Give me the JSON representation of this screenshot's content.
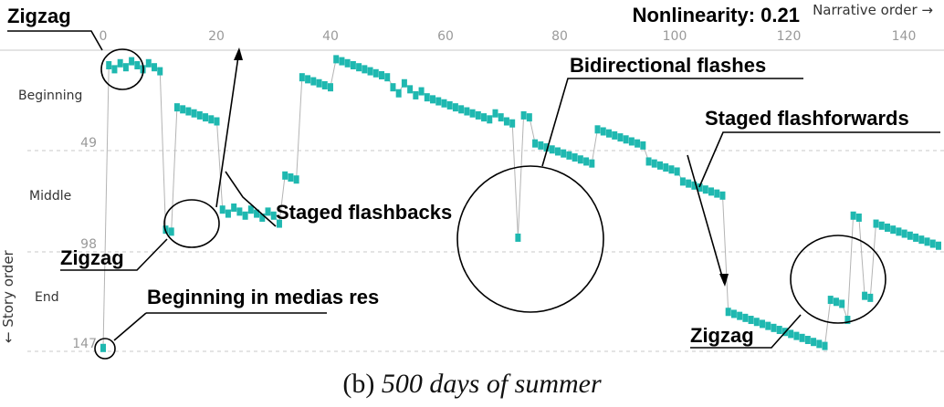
{
  "chart_data": {
    "type": "scatter",
    "title": "Nonlinearity: 0.21",
    "xlabel": "Narrative order →",
    "ylabel": "← Story order",
    "xlim": [
      0,
      147
    ],
    "ylim": [
      0,
      147
    ],
    "y_inverted": true,
    "x_ticks": [
      "0",
      "20",
      "40",
      "60",
      "80",
      "100",
      "120",
      "140"
    ],
    "y_ticks": [
      "49",
      "98",
      "147"
    ],
    "sections": [
      "Beginning",
      "Middle",
      "End"
    ],
    "grid": "horizontal dashed at section boundaries",
    "marker_color": "#1fb8b0",
    "connector_color": "#b4b4b4",
    "points": [
      [
        0,
        146
      ],
      [
        1,
        5
      ],
      [
        2,
        7
      ],
      [
        3,
        4
      ],
      [
        4,
        6
      ],
      [
        5,
        3
      ],
      [
        6,
        5
      ],
      [
        7,
        7
      ],
      [
        8,
        4
      ],
      [
        9,
        6
      ],
      [
        10,
        8
      ],
      [
        11,
        87
      ],
      [
        12,
        88
      ],
      [
        13,
        26
      ],
      [
        14,
        27
      ],
      [
        15,
        28
      ],
      [
        16,
        29
      ],
      [
        17,
        30
      ],
      [
        18,
        31
      ],
      [
        19,
        32
      ],
      [
        20,
        33
      ],
      [
        21,
        77
      ],
      [
        22,
        79
      ],
      [
        23,
        76
      ],
      [
        24,
        78
      ],
      [
        25,
        80
      ],
      [
        26,
        77
      ],
      [
        27,
        79
      ],
      [
        28,
        81
      ],
      [
        29,
        78
      ],
      [
        30,
        80
      ],
      [
        31,
        84
      ],
      [
        32,
        60
      ],
      [
        33,
        61
      ],
      [
        34,
        62
      ],
      [
        35,
        11
      ],
      [
        36,
        12
      ],
      [
        37,
        13
      ],
      [
        38,
        14
      ],
      [
        39,
        15
      ],
      [
        40,
        16
      ],
      [
        41,
        2
      ],
      [
        42,
        3
      ],
      [
        43,
        4
      ],
      [
        44,
        5
      ],
      [
        45,
        6
      ],
      [
        46,
        7
      ],
      [
        47,
        8
      ],
      [
        48,
        9
      ],
      [
        49,
        10
      ],
      [
        50,
        11
      ],
      [
        51,
        16
      ],
      [
        52,
        19
      ],
      [
        53,
        14
      ],
      [
        54,
        17
      ],
      [
        55,
        20
      ],
      [
        56,
        18
      ],
      [
        57,
        21
      ],
      [
        58,
        22
      ],
      [
        59,
        23
      ],
      [
        60,
        24
      ],
      [
        61,
        25
      ],
      [
        62,
        26
      ],
      [
        63,
        27
      ],
      [
        64,
        28
      ],
      [
        65,
        29
      ],
      [
        66,
        30
      ],
      [
        67,
        31
      ],
      [
        68,
        32
      ],
      [
        69,
        29
      ],
      [
        70,
        31
      ],
      [
        71,
        33
      ],
      [
        72,
        34
      ],
      [
        73,
        91
      ],
      [
        74,
        30
      ],
      [
        75,
        31
      ],
      [
        76,
        44
      ],
      [
        77,
        45
      ],
      [
        78,
        46
      ],
      [
        79,
        47
      ],
      [
        80,
        48
      ],
      [
        81,
        49
      ],
      [
        82,
        50
      ],
      [
        83,
        51
      ],
      [
        84,
        52
      ],
      [
        85,
        53
      ],
      [
        86,
        54
      ],
      [
        87,
        37
      ],
      [
        88,
        38
      ],
      [
        89,
        39
      ],
      [
        90,
        40
      ],
      [
        91,
        41
      ],
      [
        92,
        42
      ],
      [
        93,
        43
      ],
      [
        94,
        44
      ],
      [
        95,
        45
      ],
      [
        96,
        53
      ],
      [
        97,
        54
      ],
      [
        98,
        55
      ],
      [
        99,
        56
      ],
      [
        100,
        57
      ],
      [
        101,
        58
      ],
      [
        102,
        63
      ],
      [
        103,
        64
      ],
      [
        104,
        65
      ],
      [
        105,
        66
      ],
      [
        106,
        67
      ],
      [
        107,
        68
      ],
      [
        108,
        69
      ],
      [
        109,
        70
      ],
      [
        110,
        128
      ],
      [
        111,
        129
      ],
      [
        112,
        130
      ],
      [
        113,
        131
      ],
      [
        114,
        132
      ],
      [
        115,
        133
      ],
      [
        116,
        134
      ],
      [
        117,
        135
      ],
      [
        118,
        136
      ],
      [
        119,
        137
      ],
      [
        120,
        138
      ],
      [
        121,
        139
      ],
      [
        122,
        140
      ],
      [
        123,
        141
      ],
      [
        124,
        142
      ],
      [
        125,
        143
      ],
      [
        126,
        144
      ],
      [
        127,
        145
      ],
      [
        128,
        122
      ],
      [
        129,
        123
      ],
      [
        130,
        124
      ],
      [
        131,
        132
      ],
      [
        132,
        80
      ],
      [
        133,
        81
      ],
      [
        134,
        120
      ],
      [
        135,
        121
      ],
      [
        136,
        84
      ],
      [
        137,
        85
      ],
      [
        138,
        86
      ],
      [
        139,
        87
      ],
      [
        140,
        88
      ],
      [
        141,
        89
      ],
      [
        142,
        90
      ],
      [
        143,
        91
      ],
      [
        144,
        92
      ],
      [
        145,
        93
      ],
      [
        146,
        94
      ],
      [
        147,
        95
      ]
    ],
    "annotations": [
      {
        "label": "Zigzag"
      },
      {
        "label": "Zigzag"
      },
      {
        "label": "Zigzag"
      },
      {
        "label": "Beginning in medias res"
      },
      {
        "label": "Staged flashbacks"
      },
      {
        "label": "Bidirectional flashes"
      },
      {
        "label": "Staged flashforwards"
      }
    ]
  },
  "caption": {
    "prefix": "(b)",
    "title": "500 days of summer"
  }
}
